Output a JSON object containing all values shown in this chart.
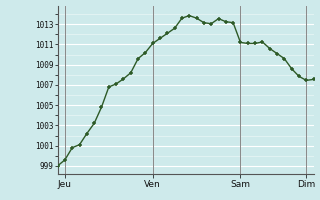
{
  "background_color": "#ceeaeb",
  "line_color": "#2d5a27",
  "marker_color": "#2d5a27",
  "grid_color_white": "#ffffff",
  "grid_color_pink": "#e8c8c8",
  "x_values": [
    0,
    1,
    2,
    3,
    4,
    5,
    6,
    7,
    8,
    9,
    10,
    11,
    12,
    13,
    14,
    15,
    16,
    17,
    18,
    19,
    20,
    21,
    22,
    23,
    24,
    25,
    26,
    27,
    28,
    29,
    30,
    31,
    32,
    33,
    34,
    35
  ],
  "y_values": [
    999.0,
    999.6,
    1000.8,
    1001.1,
    1002.2,
    1003.2,
    1004.8,
    1006.8,
    1007.1,
    1007.6,
    1008.2,
    1009.6,
    1010.2,
    1011.1,
    1011.6,
    1012.1,
    1012.6,
    1013.6,
    1013.85,
    1013.6,
    1013.15,
    1013.05,
    1013.55,
    1013.25,
    1013.15,
    1011.2,
    1011.1,
    1011.1,
    1011.25,
    1010.6,
    1010.1,
    1009.6,
    1008.6,
    1007.85,
    1007.45,
    1007.55
  ],
  "yticks": [
    999,
    1001,
    1003,
    1005,
    1007,
    1009,
    1011,
    1013
  ],
  "day_positions": [
    1,
    13,
    25,
    34
  ],
  "day_labels": [
    "Jeu",
    "Ven",
    "Sam",
    "Dim"
  ],
  "vline_positions": [
    1,
    13,
    25,
    34
  ],
  "ylim": [
    998.2,
    1014.8
  ],
  "xlim": [
    0,
    35
  ]
}
